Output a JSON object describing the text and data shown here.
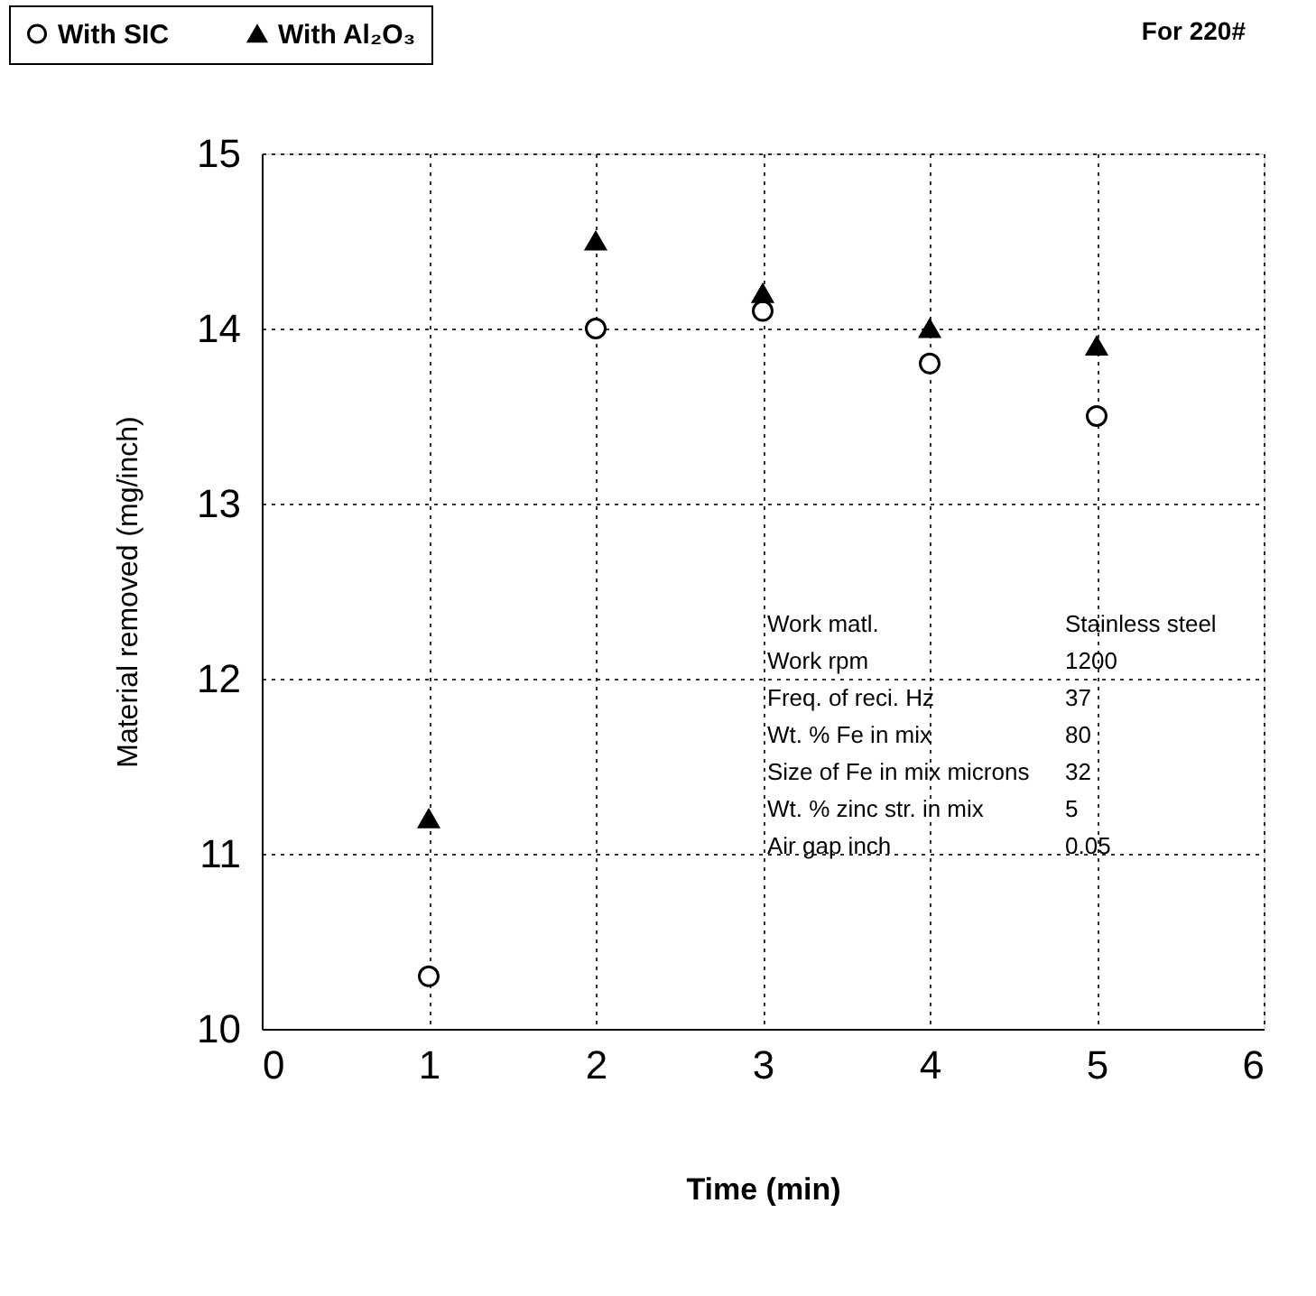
{
  "chart_data": {
    "type": "scatter",
    "xlabel": "Time (min)",
    "ylabel": "Material removed (mg/inch)",
    "xlim": [
      0,
      6
    ],
    "xticks": [
      0,
      1,
      2,
      3,
      4,
      5,
      6
    ],
    "ylim": [
      10,
      15
    ],
    "yticks": [
      10,
      11,
      12,
      13,
      14,
      15
    ],
    "grid": true,
    "legend": "top left",
    "series": [
      {
        "name": "With SIC",
        "color": "#000000",
        "marker": "circle",
        "x": [
          1,
          2,
          3,
          4,
          5
        ],
        "values": [
          10.3,
          14.0,
          14.1,
          13.8,
          13.5
        ]
      },
      {
        "name": "With Al₂O₃",
        "color": "#000000",
        "marker": "triangle",
        "x": [
          1,
          2,
          3,
          4,
          5
        ],
        "values": [
          11.2,
          14.5,
          14.2,
          14.0,
          13.9
        ]
      }
    ],
    "annotations": [
      "For 220#",
      "Work matl.",
      "Stainless steel",
      "Work rpm",
      "1200",
      "Freq. of reci. Hz",
      "37",
      "Wt. % Fe in mix",
      "80",
      "Size of Fe in mix microns",
      "32",
      "Wt. % zinc str. in mix",
      "5",
      "Air gap inch",
      "0.05"
    ]
  }
}
